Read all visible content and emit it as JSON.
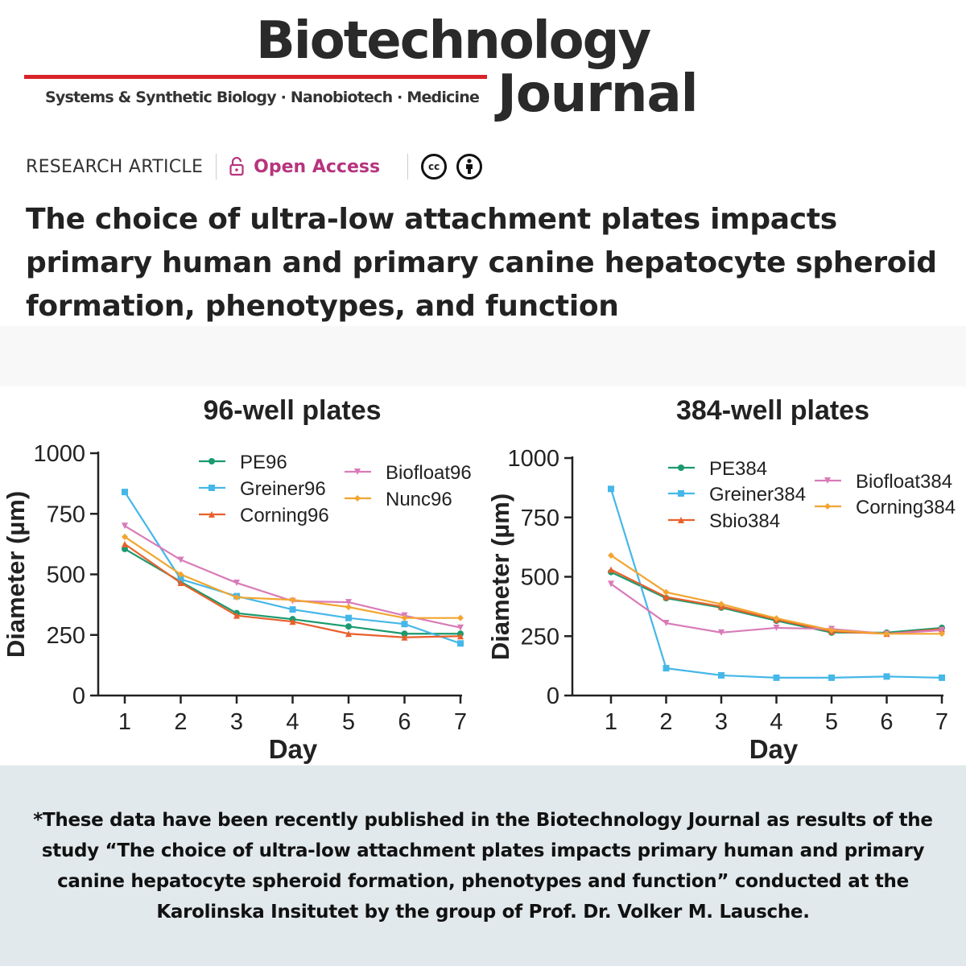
{
  "journal": {
    "name_line1": "Biotechnology",
    "name_line2": "Journal",
    "subtitle": "Systems & Synthetic Biology · Nanobiotech · Medicine",
    "accent": "#d8232a"
  },
  "article": {
    "type": "RESEARCH ARTICLE",
    "access": "Open Access",
    "access_color": "#b7347e",
    "license_icons": [
      "cc-icon",
      "attribution-icon"
    ],
    "license_cc": "cc",
    "title": "The choice of ultra-low attachment plates impacts primary human and primary canine hepatocyte spheroid formation, phenotypes, and function"
  },
  "chart_data": [
    {
      "type": "line",
      "title": "96-well plates",
      "xlabel": "Day",
      "ylabel": "Diameter (µm)",
      "x": [
        1,
        2,
        3,
        4,
        5,
        6,
        7
      ],
      "ylim": [
        0,
        1000
      ],
      "yticks": [
        0,
        250,
        500,
        750,
        1000
      ],
      "series": [
        {
          "name": "PE96",
          "color": "#1a9a6e",
          "marker": "circle",
          "values": [
            605,
            470,
            340,
            315,
            285,
            255,
            255
          ]
        },
        {
          "name": "Greiner96",
          "color": "#45b7e8",
          "marker": "square",
          "values": [
            840,
            480,
            410,
            355,
            320,
            295,
            215
          ]
        },
        {
          "name": "Corning96",
          "color": "#e8602c",
          "marker": "triangle",
          "values": [
            625,
            465,
            330,
            305,
            255,
            240,
            245
          ]
        },
        {
          "name": "Biofloat96",
          "color": "#d97bb8",
          "marker": "triangle-down",
          "values": [
            700,
            560,
            465,
            390,
            385,
            330,
            280
          ]
        },
        {
          "name": "Nunc96",
          "color": "#f2a530",
          "marker": "diamond",
          "values": [
            655,
            500,
            405,
            395,
            365,
            320,
            320
          ]
        }
      ]
    },
    {
      "type": "line",
      "title": "384-well plates",
      "xlabel": "Day",
      "ylabel": "Diameter (µm)",
      "x": [
        1,
        2,
        3,
        4,
        5,
        6,
        7
      ],
      "ylim": [
        0,
        1000
      ],
      "yticks": [
        0,
        250,
        500,
        750,
        1000
      ],
      "series": [
        {
          "name": "PE384",
          "color": "#1a9a6e",
          "marker": "circle",
          "values": [
            520,
            410,
            370,
            315,
            265,
            265,
            285
          ]
        },
        {
          "name": "Greiner384",
          "color": "#45b7e8",
          "marker": "square",
          "values": [
            870,
            115,
            85,
            75,
            75,
            80,
            75
          ]
        },
        {
          "name": "Sbio384",
          "color": "#e8602c",
          "marker": "triangle",
          "values": [
            530,
            415,
            375,
            320,
            270,
            260,
            280
          ]
        },
        {
          "name": "Biofloat384",
          "color": "#d97bb8",
          "marker": "triangle-down",
          "values": [
            470,
            305,
            265,
            285,
            280,
            260,
            275
          ]
        },
        {
          "name": "Corning384",
          "color": "#f2a530",
          "marker": "diamond",
          "values": [
            590,
            435,
            385,
            325,
            275,
            260,
            260
          ]
        }
      ]
    }
  ],
  "footer": {
    "text": "*These data have been recently published in the Biotechnology Journal as results of the study “The choice of ultra-low attachment plates impacts primary human and primary canine hepatocyte spheroid formation, phenotypes and function” conducted at the Karolinska Insitutet by the group of Prof. Dr. Volker M. Lausche."
  }
}
